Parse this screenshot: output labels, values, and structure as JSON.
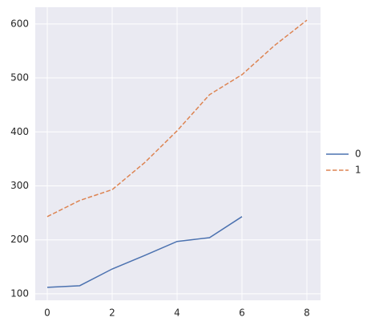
{
  "chart_data": {
    "type": "line",
    "series": [
      {
        "name": "0",
        "color": "#4c72b0",
        "dash": "solid",
        "x": [
          0,
          1,
          2,
          3,
          4,
          5,
          6
        ],
        "values": [
          112,
          115,
          146,
          171,
          197,
          204,
          243
        ]
      },
      {
        "name": "1",
        "color": "#dd8452",
        "dash": "dashed",
        "x": [
          0,
          1,
          2,
          3,
          4,
          5,
          6,
          7,
          8
        ],
        "values": [
          243,
          273,
          293,
          343,
          402,
          469,
          506,
          560,
          607
        ]
      }
    ],
    "xlim": [
      -0.37,
      8.42
    ],
    "ylim": [
      88,
      631
    ],
    "xticks": [
      0,
      2,
      4,
      6,
      8
    ],
    "yticks": [
      100,
      200,
      300,
      400,
      500,
      600
    ],
    "grid": true,
    "legend": "right"
  }
}
